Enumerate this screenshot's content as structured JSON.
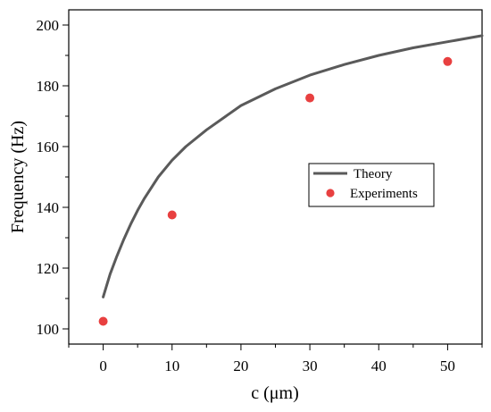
{
  "chart_data": {
    "type": "line",
    "xlabel": "c (μm)",
    "ylabel": "Frequency (Hz)",
    "xlim": [
      -5,
      55
    ],
    "ylim": [
      95,
      205
    ],
    "x_ticks": [
      0,
      10,
      20,
      30,
      40,
      50
    ],
    "y_ticks": [
      100,
      120,
      140,
      160,
      180,
      200
    ],
    "grid": false,
    "legend_position": "right-center",
    "series": [
      {
        "name": "Theory",
        "kind": "line",
        "color": "#5a5a5a",
        "x": [
          0,
          1,
          2,
          3,
          4,
          5,
          6,
          8,
          10,
          12,
          15,
          20,
          25,
          30,
          35,
          40,
          45,
          50,
          55
        ],
        "y": [
          110.5,
          118,
          124,
          129.5,
          134.5,
          139,
          143,
          150,
          155.5,
          160,
          165.5,
          173.5,
          179,
          183.5,
          187,
          190,
          192.5,
          194.5,
          196.5
        ]
      },
      {
        "name": "Experiments",
        "kind": "scatter",
        "color": "#e84040",
        "x": [
          0,
          10,
          30,
          50
        ],
        "y": [
          102.5,
          137.5,
          176,
          188
        ]
      }
    ]
  }
}
